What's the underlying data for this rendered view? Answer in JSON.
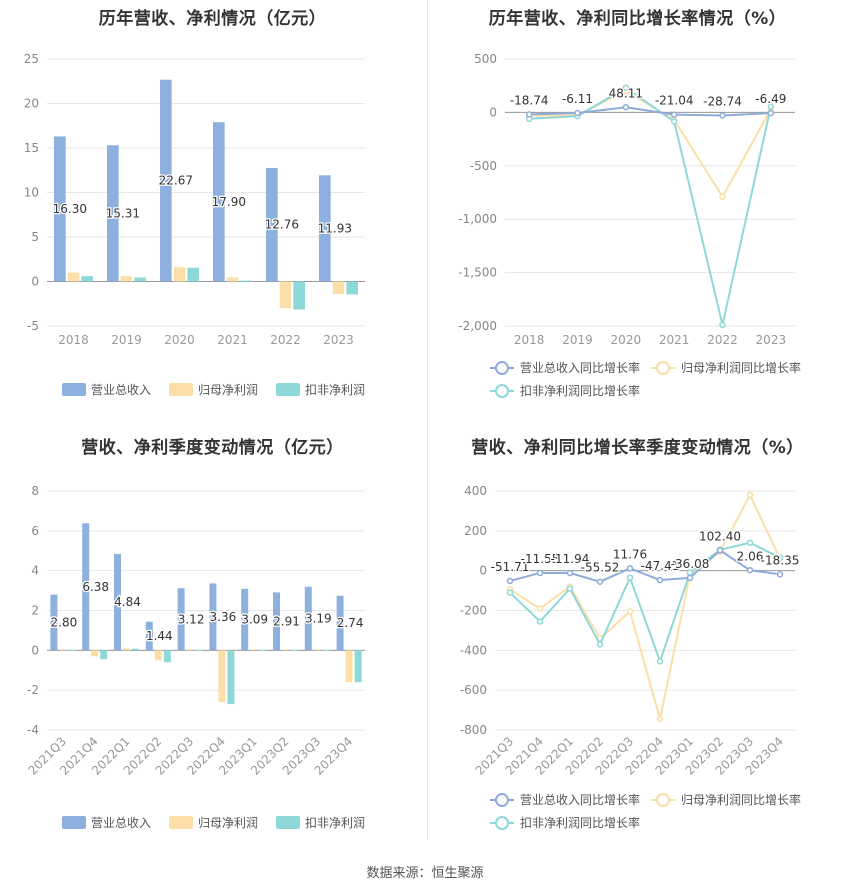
{
  "charts": [
    {
      "title": "历年营收、净利情况（亿元）",
      "chart_data": {
        "type": "bar",
        "categories": [
          "2018",
          "2019",
          "2020",
          "2021",
          "2022",
          "2023"
        ],
        "ylim": [
          -5,
          25
        ],
        "yticks": [
          -5,
          0,
          5,
          10,
          15,
          20,
          25
        ],
        "ytick_labels": [
          "-5",
          "0",
          "5",
          "10",
          "15",
          "20",
          "25"
        ],
        "legend_position": "bottom",
        "grid": true,
        "series": [
          {
            "name": "营业总收入",
            "values": [
              16.3,
              15.31,
              22.67,
              17.9,
              12.76,
              11.93
            ],
            "labels": [
              "16.30",
              "15.31",
              "22.67",
              "17.90",
              "12.76",
              "11.93"
            ],
            "color": "#8eb0de"
          },
          {
            "name": "归母净利润",
            "values": [
              1.0,
              0.6,
              1.6,
              0.45,
              -3.0,
              -1.4
            ],
            "color": "#fcdfa8"
          },
          {
            "name": "扣非净利润",
            "values": [
              0.6,
              0.45,
              1.55,
              0.1,
              -3.15,
              -1.45
            ],
            "color": "#8ed8d8"
          }
        ]
      }
    },
    {
      "title": "历年营收、净利同比增长率情况（%）",
      "chart_data": {
        "type": "line",
        "categories": [
          "2018",
          "2019",
          "2020",
          "2021",
          "2022",
          "2023"
        ],
        "ylim": [
          -2000,
          500
        ],
        "yticks": [
          -2000,
          -1500,
          -1000,
          -500,
          0,
          500
        ],
        "ytick_labels": [
          "-2,000",
          "-1,500",
          "-1,000",
          "-500",
          "0",
          "500"
        ],
        "legend_position": "bottom",
        "grid": true,
        "series": [
          {
            "name": "营业总收入同比增长率",
            "values": [
              -18.74,
              -6.11,
              48.11,
              -21.04,
              -28.74,
              -6.49
            ],
            "labels": [
              "-18.74",
              "-6.11",
              "48.11",
              "-21.04",
              "-28.74",
              "-6.49"
            ],
            "color": "#8eabdb"
          },
          {
            "name": "归母净利润同比增长率",
            "values": [
              -30,
              -25,
              200,
              -70,
              -790,
              30
            ],
            "color": "#fcdfa8"
          },
          {
            "name": "扣非净利润同比增长率",
            "values": [
              -60,
              -35,
              230,
              -85,
              -1990,
              55
            ],
            "color": "#8ed8d8"
          }
        ]
      }
    },
    {
      "title": "营收、净利季度变动情况（亿元）",
      "chart_data": {
        "type": "bar",
        "categories": [
          "2021Q3",
          "2021Q4",
          "2022Q1",
          "2022Q2",
          "2022Q3",
          "2022Q4",
          "2023Q1",
          "2023Q2",
          "2023Q3",
          "2023Q4"
        ],
        "ylim": [
          -4,
          8
        ],
        "yticks": [
          -4,
          -2,
          0,
          2,
          4,
          6,
          8
        ],
        "ytick_labels": [
          "-4",
          "-2",
          "0",
          "2",
          "4",
          "6",
          "8"
        ],
        "legend_position": "bottom",
        "grid": true,
        "series": [
          {
            "name": "营业总收入",
            "values": [
              2.8,
              6.38,
              4.84,
              1.44,
              3.12,
              3.36,
              3.09,
              2.91,
              3.19,
              2.74
            ],
            "labels": [
              "2.80",
              "6.38",
              "4.84",
              "1.44",
              "3.12",
              "3.36",
              "3.09",
              "2.91",
              "3.19",
              "2.74"
            ],
            "color": "#8eb0de"
          },
          {
            "name": "归母净利润",
            "values": [
              0.05,
              -0.3,
              0.1,
              -0.5,
              0.05,
              -2.6,
              0.05,
              0.05,
              0.05,
              -1.6
            ],
            "color": "#fcdfa8"
          },
          {
            "name": "扣非净利润",
            "values": [
              0.02,
              -0.45,
              0.08,
              -0.6,
              0.02,
              -2.7,
              0.02,
              0.02,
              0.02,
              -1.6
            ],
            "color": "#8ed8d8"
          }
        ]
      }
    },
    {
      "title": "营收、净利同比增长率季度变动情况（%）",
      "chart_data": {
        "type": "line",
        "categories": [
          "2021Q3",
          "2021Q4",
          "2022Q1",
          "2022Q2",
          "2022Q3",
          "2022Q4",
          "2023Q1",
          "2023Q2",
          "2023Q3",
          "2023Q4"
        ],
        "ylim": [
          -800,
          400
        ],
        "yticks": [
          -800,
          -600,
          -400,
          -200,
          0,
          200,
          400
        ],
        "ytick_labels": [
          "-800",
          "-600",
          "-400",
          "-200",
          "0",
          "200",
          "400"
        ],
        "legend_position": "bottom",
        "grid": true,
        "series": [
          {
            "name": "营业总收入同比增长率",
            "values": [
              -51.71,
              -11.55,
              -11.94,
              -55.52,
              11.76,
              -47.41,
              -36.08,
              102.4,
              2.06,
              -18.35
            ],
            "labels": [
              "-51.71",
              "-11.55",
              "-11.94",
              "-55.52",
              "11.76",
              "-47.41",
              "-36.08",
              "102.40",
              "2.06",
              "-18.35"
            ],
            "color": "#8eabdb"
          },
          {
            "name": "归母净利润同比增长率",
            "values": [
              -95,
              -190,
              -80,
              -340,
              -205,
              -745,
              -20,
              95,
              380,
              60
            ],
            "color": "#fcdfa8"
          },
          {
            "name": "扣非净利润同比增长率",
            "values": [
              -110,
              -255,
              -90,
              -370,
              -35,
              -455,
              -10,
              105,
              140,
              65
            ],
            "color": "#8ed8d8"
          }
        ]
      }
    }
  ],
  "source_text": "数据来源：恒生聚源"
}
